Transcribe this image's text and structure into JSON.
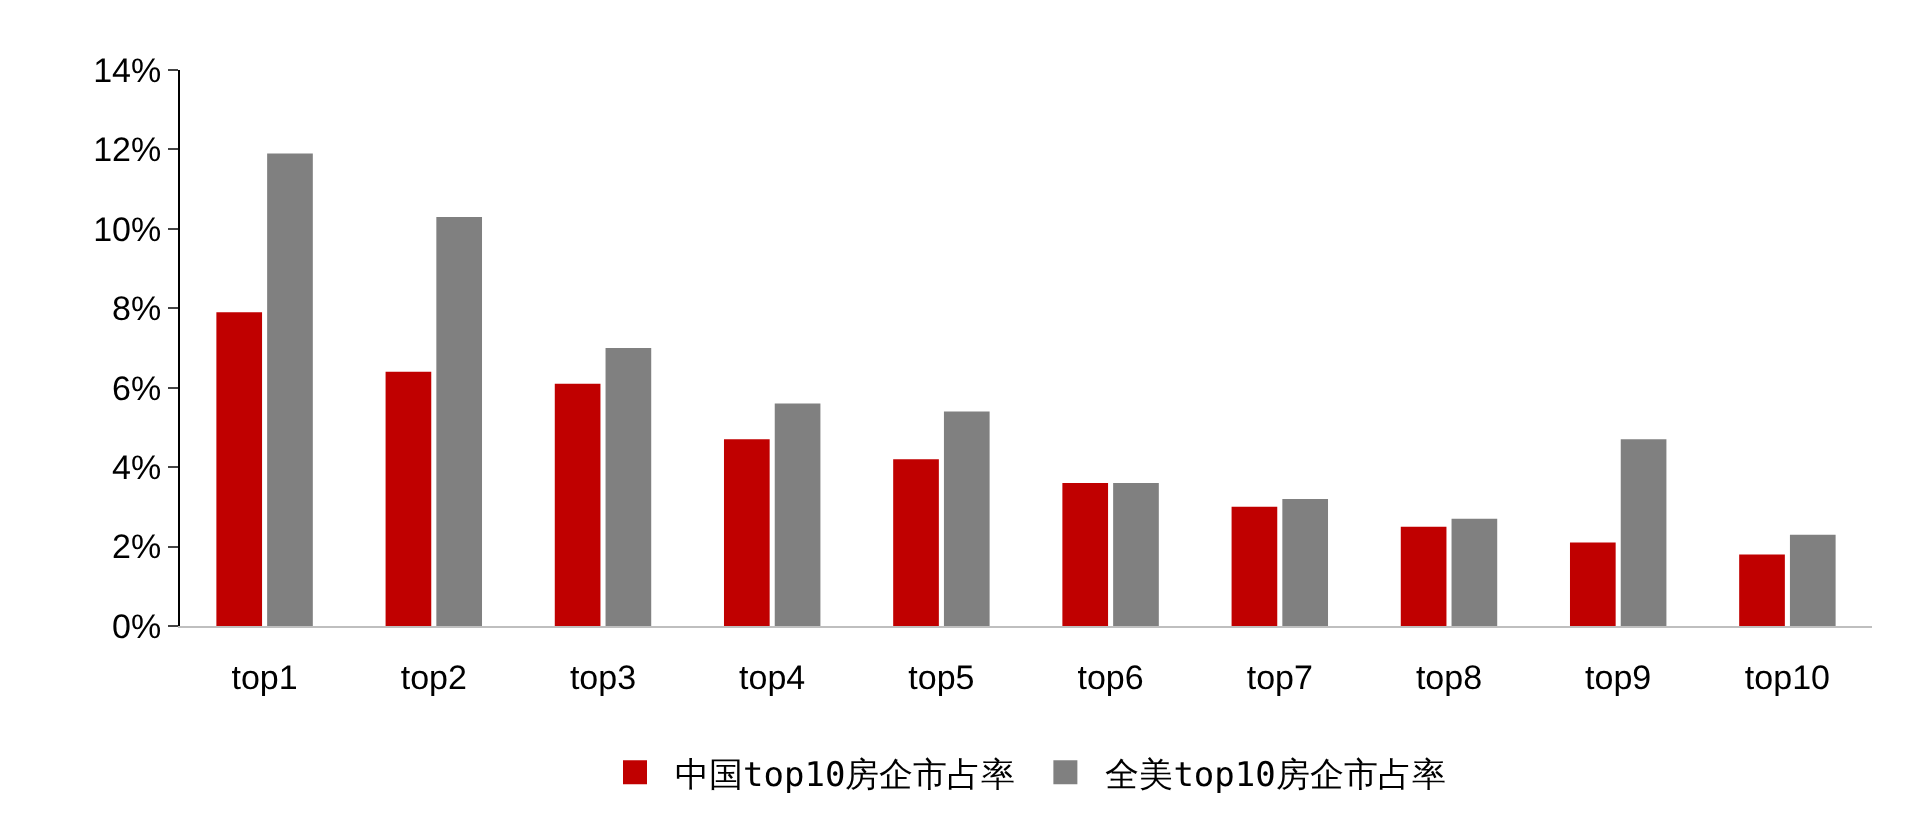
{
  "chart_data": {
    "type": "bar",
    "categories": [
      "top1",
      "top2",
      "top3",
      "top4",
      "top5",
      "top6",
      "top7",
      "top8",
      "top9",
      "top10"
    ],
    "series": [
      {
        "name": "中国top10房企市占率",
        "color": "#c00000",
        "values": [
          7.9,
          6.4,
          6.1,
          4.7,
          4.2,
          3.6,
          3.0,
          2.5,
          2.1,
          1.8
        ]
      },
      {
        "name": "全美top10房企市占率",
        "color": "#808080",
        "values": [
          11.9,
          10.3,
          7.0,
          5.6,
          5.4,
          3.6,
          3.2,
          2.7,
          4.7,
          2.3
        ]
      }
    ],
    "ylim": [
      0,
      14
    ],
    "yticks": [
      {
        "value": 0,
        "label": "0%"
      },
      {
        "value": 2,
        "label": "2%"
      },
      {
        "value": 4,
        "label": "4%"
      },
      {
        "value": 6,
        "label": "6%"
      },
      {
        "value": 8,
        "label": "8%"
      },
      {
        "value": 10,
        "label": "10%"
      },
      {
        "value": 12,
        "label": "12%"
      },
      {
        "value": 14,
        "label": "14%"
      }
    ],
    "grid": false,
    "legend": "bottom"
  }
}
